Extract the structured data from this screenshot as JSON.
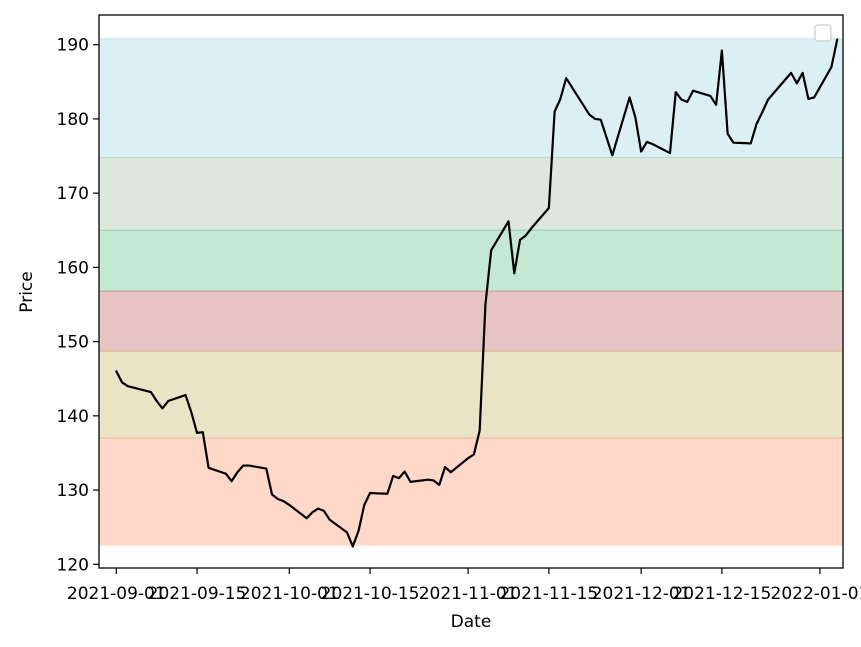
{
  "chart_data": {
    "type": "line",
    "title": "",
    "xlabel": "Date",
    "ylabel": "Price",
    "xlim": [
      "2021-08-29",
      "2022-01-05"
    ],
    "ylim": [
      119.5,
      194
    ],
    "grid": false,
    "legend": {
      "placement": "top-right",
      "entries": []
    },
    "line_color": "#000000",
    "bands": [
      {
        "y0": 122.5,
        "y1": 137.0,
        "color": "#ff7f50"
      },
      {
        "y0": 137.0,
        "y1": 148.7,
        "color": "#b8a646"
      },
      {
        "y0": 148.7,
        "y1": 156.8,
        "color": "#b03a3a"
      },
      {
        "y0": 156.8,
        "y1": 165.0,
        "color": "#3cb371"
      },
      {
        "y0": 165.0,
        "y1": 174.8,
        "color": "#8fb08f"
      },
      {
        "y0": 174.8,
        "y1": 190.8,
        "color": "#87ceda"
      }
    ],
    "yticks": [
      120,
      130,
      140,
      150,
      160,
      170,
      180,
      190
    ],
    "xticks": [
      "2021-09-01",
      "2021-09-15",
      "2021-10-01",
      "2021-10-15",
      "2021-11-01",
      "2021-11-15",
      "2021-12-01",
      "2021-12-15",
      "2022-01-01"
    ],
    "series": [
      {
        "points": [
          [
            "2021-09-01",
            146.0
          ],
          [
            "2021-09-02",
            144.5
          ],
          [
            "2021-09-03",
            144.0
          ],
          [
            "2021-09-07",
            143.2
          ],
          [
            "2021-09-08",
            142.0
          ],
          [
            "2021-09-09",
            141.0
          ],
          [
            "2021-09-10",
            142.0
          ],
          [
            "2021-09-13",
            142.8
          ],
          [
            "2021-09-14",
            140.5
          ],
          [
            "2021-09-15",
            137.7
          ],
          [
            "2021-09-16",
            137.8
          ],
          [
            "2021-09-17",
            133.0
          ],
          [
            "2021-09-20",
            132.2
          ],
          [
            "2021-09-21",
            131.2
          ],
          [
            "2021-09-22",
            132.4
          ],
          [
            "2021-09-23",
            133.3
          ],
          [
            "2021-09-24",
            133.3
          ],
          [
            "2021-09-27",
            132.9
          ],
          [
            "2021-09-28",
            129.4
          ],
          [
            "2021-09-29",
            128.8
          ],
          [
            "2021-09-30",
            128.5
          ],
          [
            "2021-10-01",
            128.0
          ],
          [
            "2021-10-04",
            126.2
          ],
          [
            "2021-10-05",
            127.0
          ],
          [
            "2021-10-06",
            127.5
          ],
          [
            "2021-10-07",
            127.2
          ],
          [
            "2021-10-08",
            126.0
          ],
          [
            "2021-10-11",
            124.3
          ],
          [
            "2021-10-12",
            122.4
          ],
          [
            "2021-10-13",
            124.5
          ],
          [
            "2021-10-14",
            128.0
          ],
          [
            "2021-10-15",
            129.6
          ],
          [
            "2021-10-18",
            129.5
          ],
          [
            "2021-10-19",
            131.9
          ],
          [
            "2021-10-20",
            131.6
          ],
          [
            "2021-10-21",
            132.5
          ],
          [
            "2021-10-22",
            131.1
          ],
          [
            "2021-10-25",
            131.4
          ],
          [
            "2021-10-26",
            131.3
          ],
          [
            "2021-10-27",
            130.7
          ],
          [
            "2021-10-28",
            133.1
          ],
          [
            "2021-10-29",
            132.4
          ],
          [
            "2021-11-01",
            134.3
          ],
          [
            "2021-11-02",
            134.8
          ],
          [
            "2021-11-03",
            138.0
          ],
          [
            "2021-11-04",
            155.0
          ],
          [
            "2021-11-05",
            162.3
          ],
          [
            "2021-11-08",
            166.2
          ],
          [
            "2021-11-09",
            159.2
          ],
          [
            "2021-11-10",
            163.7
          ],
          [
            "2021-11-11",
            164.3
          ],
          [
            "2021-11-12",
            165.3
          ],
          [
            "2021-11-15",
            168.0
          ],
          [
            "2021-11-16",
            181.0
          ],
          [
            "2021-11-17",
            182.7
          ],
          [
            "2021-11-18",
            185.5
          ],
          [
            "2021-11-22",
            180.6
          ],
          [
            "2021-11-23",
            180.0
          ],
          [
            "2021-11-24",
            179.9
          ],
          [
            "2021-11-26",
            175.1
          ],
          [
            "2021-11-29",
            182.9
          ],
          [
            "2021-11-30",
            180.2
          ],
          [
            "2021-12-01",
            175.6
          ],
          [
            "2021-12-02",
            176.9
          ],
          [
            "2021-12-03",
            176.6
          ],
          [
            "2021-12-06",
            175.4
          ],
          [
            "2021-12-07",
            183.6
          ],
          [
            "2021-12-08",
            182.6
          ],
          [
            "2021-12-09",
            182.3
          ],
          [
            "2021-12-10",
            183.8
          ],
          [
            "2021-12-13",
            183.1
          ],
          [
            "2021-12-14",
            181.9
          ],
          [
            "2021-12-15",
            189.2
          ],
          [
            "2021-12-16",
            178.0
          ],
          [
            "2021-12-17",
            176.8
          ],
          [
            "2021-12-20",
            176.7
          ],
          [
            "2021-12-21",
            179.3
          ],
          [
            "2021-12-22",
            180.9
          ],
          [
            "2021-12-23",
            182.6
          ],
          [
            "2021-12-27",
            186.2
          ],
          [
            "2021-12-28",
            184.8
          ],
          [
            "2021-12-29",
            186.2
          ],
          [
            "2021-12-30",
            182.7
          ],
          [
            "2021-12-31",
            182.9
          ],
          [
            "2022-01-03",
            187.0
          ],
          [
            "2022-01-04",
            190.7
          ]
        ]
      }
    ]
  }
}
